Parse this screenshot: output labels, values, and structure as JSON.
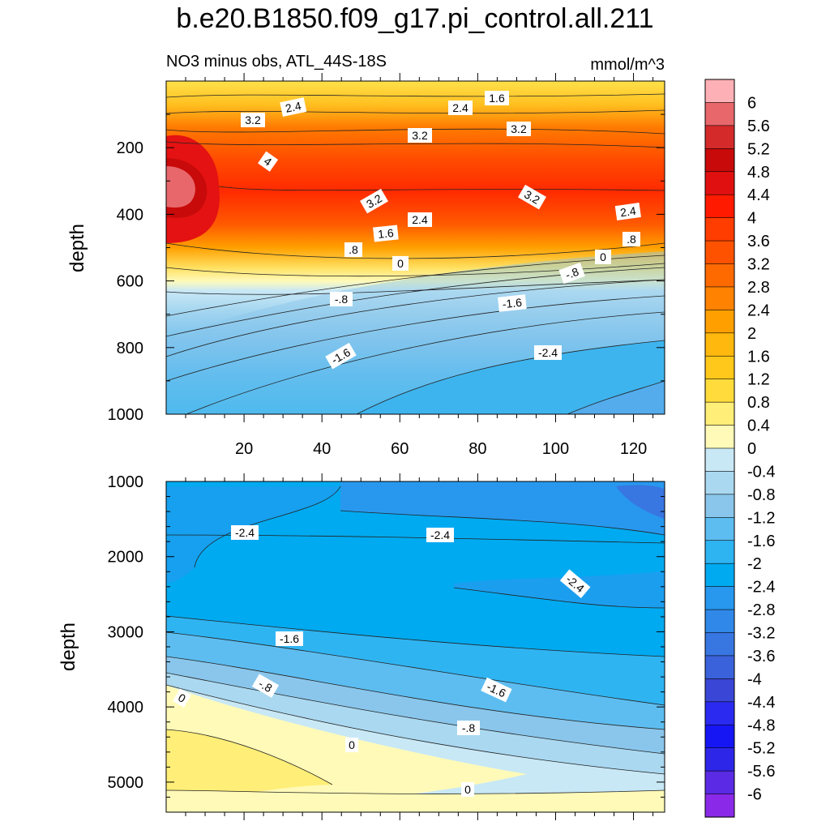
{
  "title": "b.e20.B1850.f09_g17.pi_control.all.211",
  "subtitle_left": "NO3 minus obs, ATL_44S-18S",
  "subtitle_right": "mmol/m^3",
  "chart_data": [
    {
      "type": "contour",
      "panel": "upper",
      "xlabel": "",
      "ylabel": "depth",
      "x_ticks": [
        "20",
        "40",
        "60",
        "80",
        "100",
        "120"
      ],
      "y_ticks": [
        "200",
        "400",
        "600",
        "800",
        "1000"
      ],
      "xlim": [
        0,
        128
      ],
      "ylim": [
        0,
        1000
      ],
      "contour_labels": [
        "2.4",
        "1.6",
        "3.2",
        "2.4",
        "3.2",
        "3.2",
        "4",
        "3.2",
        "3.2",
        "2.4",
        "2.4",
        "1.6",
        ".8",
        ".8",
        "0",
        "0",
        "-.8",
        "-.8",
        "-1.6",
        "-1.6",
        "-2.4"
      ]
    },
    {
      "type": "contour",
      "panel": "lower",
      "xlabel": "",
      "ylabel": "depth",
      "y_ticks": [
        "1000",
        "2000",
        "3000",
        "4000",
        "5000"
      ],
      "xlim": [
        0,
        128
      ],
      "ylim": [
        1000,
        5400
      ],
      "contour_labels": [
        "-2.4",
        "-2.4",
        "-2.4",
        "-1.6",
        "-.8",
        "-1.6",
        "0",
        "0",
        "-.8",
        "0"
      ]
    }
  ],
  "colorbar": {
    "levels": [
      "6",
      "5.6",
      "5.2",
      "4.8",
      "4.4",
      "4",
      "3.6",
      "3.2",
      "2.8",
      "2.4",
      "2",
      "1.6",
      "1.2",
      "0.8",
      "0.4",
      "0",
      "-0.4",
      "-0.8",
      "-1.2",
      "-1.6",
      "-2",
      "-2.4",
      "-2.8",
      "-3.2",
      "-3.6",
      "-4",
      "-4.4",
      "-4.8",
      "-5.2",
      "-5.6",
      "-6"
    ],
    "colors": [
      "#fdb0b5",
      "#e8676b",
      "#d42a2a",
      "#c80a0a",
      "#e11010",
      "#ff1a00",
      "#ff3d00",
      "#ff5200",
      "#ff6a00",
      "#ff8200",
      "#ffa000",
      "#ffb80d",
      "#ffc81a",
      "#ffdc3c",
      "#ffee77",
      "#fffab8",
      "#c8e8f6",
      "#aad8f0",
      "#8ac6ec",
      "#5dbdf0",
      "#2fb4f2",
      "#00aaf0",
      "#2898ee",
      "#3088e8",
      "#3876e2",
      "#3a62da",
      "#3a46d6",
      "#2a2af0",
      "#1616f4",
      "#2d26e8",
      "#5a2ae4",
      "#8a2ae8"
    ]
  }
}
